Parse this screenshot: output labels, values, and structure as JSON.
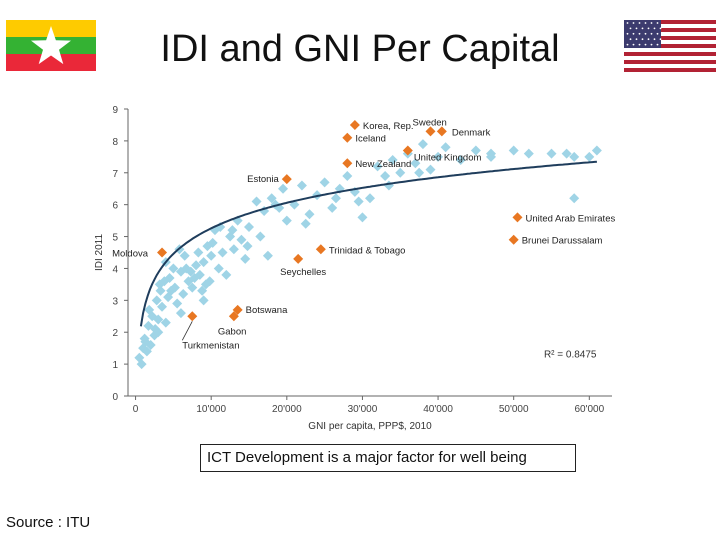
{
  "title": "IDI and GNI Per Capital",
  "caption": "ICT Development is a major factor for well being",
  "source": "Source : ITU",
  "colors": {
    "highlight": "#E87722",
    "others": "#9FD4E6",
    "trend": "#1F3D5C",
    "axis": "#666666"
  },
  "chart_data": {
    "type": "scatter",
    "xlabel": "GNI per capita, PPP$, 2010",
    "ylabel": "IDI 2011",
    "xlim": [
      -1000,
      63000
    ],
    "ylim": [
      0,
      9
    ],
    "x_ticks": [
      0,
      10000,
      20000,
      30000,
      40000,
      50000,
      60000
    ],
    "x_tick_labels": [
      "0",
      "10'000",
      "20'000",
      "30'000",
      "40'000",
      "50'000",
      "60'000"
    ],
    "y_ticks": [
      0,
      1,
      2,
      3,
      4,
      5,
      6,
      7,
      8,
      9
    ],
    "annotation": "R² = 0.8475",
    "trendline": "logarithmic",
    "highlighted_points": [
      {
        "label": "Korea, Rep.",
        "x": 29000,
        "y": 8.5
      },
      {
        "label": "Sweden",
        "x": 39000,
        "y": 8.3
      },
      {
        "label": "Denmark",
        "x": 40500,
        "y": 8.3
      },
      {
        "label": "Iceland",
        "x": 28000,
        "y": 8.1
      },
      {
        "label": "United Kingdom",
        "x": 36000,
        "y": 7.7
      },
      {
        "label": "New Zealand",
        "x": 28000,
        "y": 7.3
      },
      {
        "label": "Estonia",
        "x": 20000,
        "y": 6.8
      },
      {
        "label": "United Arab Emirates",
        "x": 50500,
        "y": 5.6
      },
      {
        "label": "Moldova",
        "x": 3500,
        "y": 4.5
      },
      {
        "label": "Brunei Darussalam",
        "x": 50000,
        "y": 4.9
      },
      {
        "label": "Trinidad & Tobago",
        "x": 24500,
        "y": 4.6
      },
      {
        "label": "Seychelles",
        "x": 21500,
        "y": 4.3
      },
      {
        "label": "Botswana",
        "x": 13500,
        "y": 2.7
      },
      {
        "label": "Gabon",
        "x": 13000,
        "y": 2.5
      },
      {
        "label": "Turkmenistan",
        "x": 7500,
        "y": 2.5
      }
    ],
    "other_points": {
      "x": [
        500,
        800,
        1000,
        1200,
        1500,
        1700,
        2000,
        2200,
        2500,
        2800,
        3000,
        3300,
        3500,
        3800,
        4000,
        4300,
        4500,
        5000,
        5200,
        5500,
        6000,
        6300,
        6500,
        7000,
        7300,
        7500,
        8000,
        8300,
        8500,
        9000,
        9300,
        9500,
        10000,
        10500,
        11000,
        11500,
        12000,
        12500,
        13000,
        13500,
        14000,
        14500,
        15000,
        16000,
        17000,
        17500,
        18000,
        19000,
        19500,
        20000,
        21000,
        22000,
        23000,
        24000,
        25000,
        26000,
        27000,
        28000,
        29000,
        30000,
        31000,
        32000,
        33000,
        34000,
        35000,
        36000,
        37000,
        38000,
        39000,
        40000,
        41000,
        43000,
        45000,
        47000,
        50000,
        55000,
        57000,
        58000,
        61000,
        1300,
        1800,
        2600,
        3200,
        4700,
        5800,
        6700,
        7800,
        8800,
        9800,
        10200,
        11200,
        12800,
        14800,
        16500,
        18500,
        22500,
        26500,
        29500,
        33500,
        37500,
        47000,
        52000,
        58000,
        60000,
        3000,
        4000,
        6000,
        9000
      ],
      "y": [
        1.2,
        1.0,
        1.5,
        1.8,
        1.4,
        2.2,
        1.6,
        2.5,
        1.9,
        3.0,
        2.4,
        3.3,
        2.8,
        3.6,
        4.2,
        3.1,
        3.7,
        4.0,
        3.4,
        2.9,
        3.9,
        3.2,
        4.4,
        3.6,
        3.9,
        3.4,
        4.1,
        4.5,
        3.8,
        4.2,
        3.5,
        4.7,
        4.4,
        5.2,
        4.0,
        4.5,
        3.8,
        5.0,
        4.6,
        5.5,
        4.9,
        4.3,
        5.3,
        6.1,
        5.8,
        4.4,
        6.2,
        5.9,
        6.5,
        5.5,
        6.0,
        6.6,
        5.7,
        6.3,
        6.7,
        5.9,
        6.5,
        6.9,
        6.4,
        5.6,
        6.2,
        7.2,
        6.9,
        7.4,
        7.0,
        7.6,
        7.3,
        7.9,
        7.1,
        7.5,
        7.8,
        7.4,
        7.7,
        7.5,
        7.7,
        7.6,
        7.6,
        6.2,
        7.7,
        1.7,
        2.7,
        2.1,
        3.5,
        3.3,
        4.6,
        4.0,
        3.7,
        3.3,
        3.6,
        4.8,
        5.3,
        5.2,
        4.7,
        5.0,
        6.0,
        5.4,
        6.2,
        6.1,
        6.6,
        7.0,
        7.6,
        7.6,
        7.5,
        7.5,
        2.0,
        2.3,
        2.6,
        3.0
      ]
    }
  }
}
